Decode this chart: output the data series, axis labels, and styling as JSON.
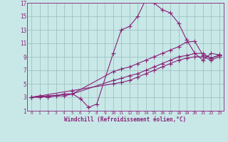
{
  "xlabel": "Windchill (Refroidissement éolien,°C)",
  "xlim": [
    -0.5,
    23.5
  ],
  "ylim": [
    1,
    17
  ],
  "xticks": [
    0,
    1,
    2,
    3,
    4,
    5,
    6,
    7,
    8,
    9,
    10,
    11,
    12,
    13,
    14,
    15,
    16,
    17,
    18,
    19,
    20,
    21,
    22,
    23
  ],
  "yticks": [
    1,
    3,
    5,
    7,
    9,
    11,
    13,
    15,
    17
  ],
  "bg_color": "#c8e8e8",
  "grid_color": "#99bbbb",
  "line_color": "#882277",
  "line_width": 0.8,
  "marker": "+",
  "marker_size": 4,
  "lines": [
    {
      "x": [
        0,
        1,
        2,
        3,
        4,
        5,
        6,
        7,
        8,
        10,
        11,
        12,
        13,
        14,
        15,
        16,
        17,
        18,
        19,
        20,
        21,
        22,
        23
      ],
      "y": [
        3,
        3.2,
        3,
        3.2,
        3.2,
        3.5,
        2.8,
        1.5,
        2,
        9.5,
        13,
        13.5,
        15,
        17.5,
        17,
        16,
        15.5,
        14,
        11.5,
        9.5,
        8.5,
        9.5,
        9.3
      ]
    },
    {
      "x": [
        0,
        1,
        2,
        3,
        4,
        5,
        10,
        11,
        12,
        13,
        14,
        15,
        16,
        17,
        18,
        19,
        20,
        21,
        22,
        23
      ],
      "y": [
        3,
        3,
        3.2,
        3.2,
        3.5,
        3.5,
        6.8,
        7.2,
        7.5,
        8,
        8.5,
        9,
        9.5,
        10,
        10.5,
        11.2,
        11.3,
        9.2,
        8.8,
        9.3
      ]
    },
    {
      "x": [
        0,
        5,
        10,
        11,
        12,
        13,
        14,
        15,
        16,
        17,
        18,
        19,
        20,
        21,
        22,
        23
      ],
      "y": [
        3,
        3.5,
        5.5,
        5.8,
        6.2,
        6.5,
        7,
        7.5,
        8,
        8.5,
        9,
        9.2,
        9.5,
        9.5,
        8.8,
        9.2
      ]
    },
    {
      "x": [
        0,
        5,
        10,
        11,
        12,
        13,
        14,
        15,
        16,
        17,
        18,
        19,
        20,
        21,
        22,
        23
      ],
      "y": [
        3,
        4,
        5,
        5.2,
        5.5,
        6,
        6.5,
        7,
        7.5,
        8,
        8.5,
        8.8,
        9,
        9,
        8.5,
        9
      ]
    }
  ]
}
